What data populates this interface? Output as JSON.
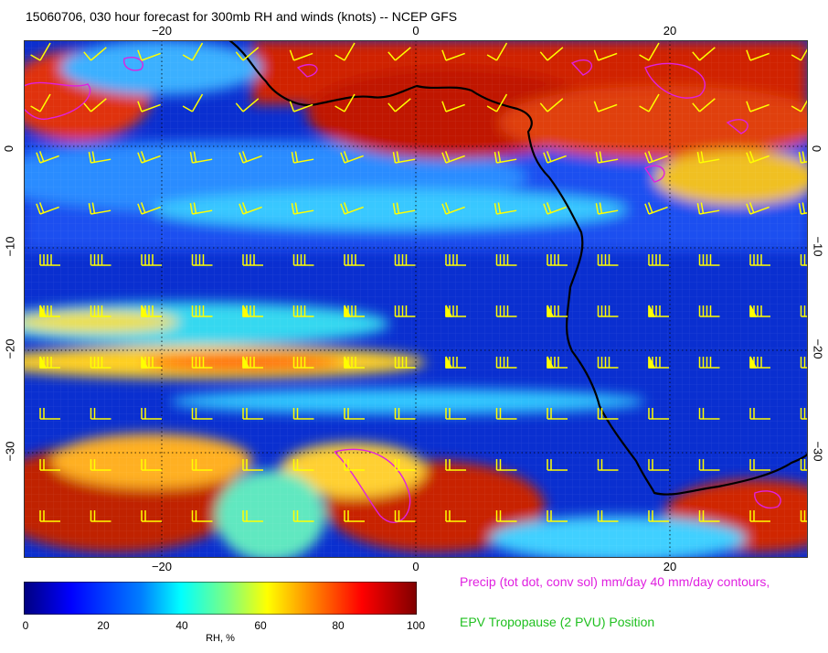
{
  "title": "15060706, 030 hour forecast for 300mb RH and winds (knots) -- NCEP GFS",
  "axes": {
    "lon_ticks": [
      "−20",
      "0",
      "20"
    ],
    "lat_ticks": [
      "0",
      "−10",
      "−20",
      "−30"
    ]
  },
  "colorbar": {
    "label": "RH, %",
    "ticks": [
      "0",
      "20",
      "40",
      "60",
      "80",
      "100"
    ],
    "colors": [
      "#00007f",
      "#0000ff",
      "#007fff",
      "#00ffff",
      "#7fff7f",
      "#ffff00",
      "#ff7f00",
      "#ff0000",
      "#7f0000"
    ]
  },
  "legend": {
    "precip": "Precip (tot dot, conv sol) mm/day 40 mm/day contours,",
    "tropopause": "EPV Tropopause (2 PVU) Position"
  },
  "colors": {
    "precip_contour": "#e020e0",
    "tropopause": "#20c020",
    "wind_barb": "#ffff00",
    "coastline": "#000000"
  }
}
